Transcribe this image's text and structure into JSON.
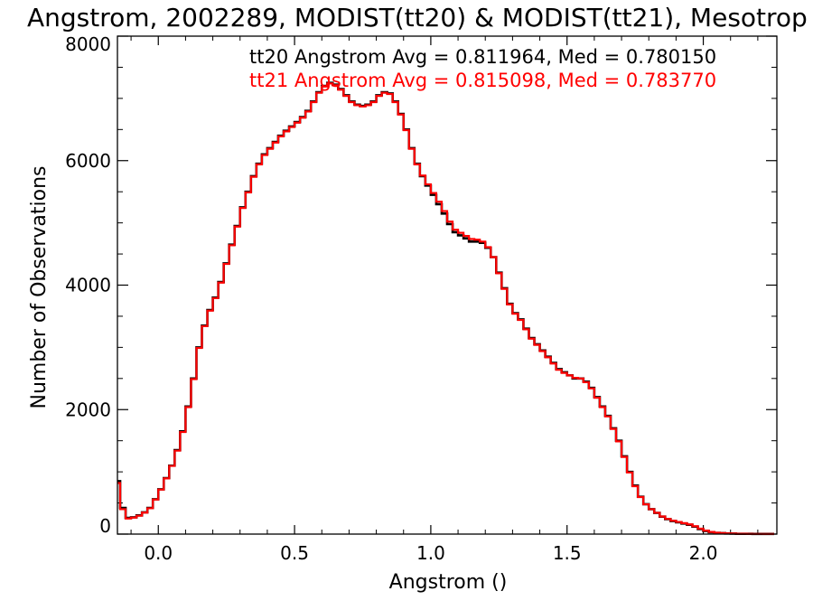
{
  "chart_data": {
    "type": "line",
    "title": "Angstrom, 2002289, MODIST(tt20) & MODIST(tt21), Mesotrop",
    "xlabel": "Angstrom ()",
    "ylabel": "Number of Observations",
    "xlim": [
      -0.15,
      2.27
    ],
    "ylim": [
      0,
      8000
    ],
    "x_ticks": [
      0.0,
      0.5,
      1.0,
      1.5,
      2.0
    ],
    "x_tick_labels": [
      "0.0",
      "0.5",
      "1.0",
      "1.5",
      "2.0"
    ],
    "y_ticks": [
      0,
      2000,
      4000,
      6000,
      8000
    ],
    "y_tick_labels": [
      "0",
      "2000",
      "4000",
      "6000",
      "8000"
    ],
    "grid": false,
    "annotations": [
      {
        "text": "tt20 Angstrom Avg = 0.811964, Med = 0.780150",
        "color": "#000000"
      },
      {
        "text": "tt21 Angstrom Avg = 0.815098, Med = 0.783770",
        "color": "#ff0000"
      }
    ],
    "series": [
      {
        "color": "#000000",
        "style": "histogram-step",
        "x": [
          -0.15,
          -0.13,
          -0.11,
          -0.09,
          -0.07,
          -0.05,
          -0.03,
          -0.01,
          0.01,
          0.03,
          0.05,
          0.07,
          0.09,
          0.11,
          0.13,
          0.15,
          0.17,
          0.19,
          0.21,
          0.23,
          0.25,
          0.27,
          0.29,
          0.31,
          0.33,
          0.35,
          0.37,
          0.39,
          0.41,
          0.43,
          0.45,
          0.47,
          0.49,
          0.51,
          0.53,
          0.55,
          0.57,
          0.59,
          0.61,
          0.63,
          0.65,
          0.67,
          0.69,
          0.71,
          0.73,
          0.75,
          0.77,
          0.79,
          0.81,
          0.83,
          0.85,
          0.87,
          0.89,
          0.91,
          0.93,
          0.95,
          0.97,
          0.99,
          1.01,
          1.03,
          1.05,
          1.07,
          1.09,
          1.11,
          1.13,
          1.15,
          1.17,
          1.19,
          1.21,
          1.23,
          1.25,
          1.27,
          1.29,
          1.31,
          1.33,
          1.35,
          1.37,
          1.39,
          1.41,
          1.43,
          1.45,
          1.47,
          1.49,
          1.51,
          1.53,
          1.55,
          1.57,
          1.59,
          1.61,
          1.63,
          1.65,
          1.67,
          1.69,
          1.71,
          1.73,
          1.75,
          1.77,
          1.79,
          1.81,
          1.83,
          1.85,
          1.87,
          1.89,
          1.91,
          1.93,
          1.95,
          1.97,
          1.99,
          2.01,
          2.03,
          2.05,
          2.07,
          2.09,
          2.11,
          2.13,
          2.15,
          2.17,
          2.19,
          2.21,
          2.23,
          2.25
        ],
        "values": [
          850,
          420,
          260,
          270,
          300,
          350,
          420,
          560,
          720,
          900,
          1100,
          1350,
          1650,
          2050,
          2500,
          3000,
          3350,
          3600,
          3800,
          4050,
          4350,
          4650,
          4950,
          5250,
          5500,
          5750,
          5950,
          6100,
          6200,
          6300,
          6400,
          6480,
          6550,
          6620,
          6700,
          6800,
          6950,
          7100,
          7200,
          7250,
          7220,
          7150,
          7050,
          6950,
          6900,
          6880,
          6900,
          6950,
          7050,
          7100,
          7080,
          6950,
          6750,
          6500,
          6200,
          5950,
          5750,
          5600,
          5450,
          5300,
          5150,
          4980,
          4850,
          4800,
          4750,
          4700,
          4700,
          4680,
          4600,
          4450,
          4200,
          3950,
          3700,
          3550,
          3450,
          3300,
          3150,
          3050,
          2950,
          2850,
          2750,
          2650,
          2600,
          2550,
          2500,
          2500,
          2450,
          2350,
          2200,
          2050,
          1900,
          1700,
          1500,
          1250,
          1000,
          780,
          600,
          480,
          400,
          340,
          280,
          240,
          210,
          190,
          170,
          150,
          120,
          80,
          50,
          30,
          20,
          15,
          10,
          8,
          5,
          5,
          4,
          3,
          3,
          2,
          2
        ]
      },
      {
        "color": "#ff0000",
        "style": "histogram-step",
        "x": [
          -0.15,
          -0.13,
          -0.11,
          -0.09,
          -0.07,
          -0.05,
          -0.03,
          -0.01,
          0.01,
          0.03,
          0.05,
          0.07,
          0.09,
          0.11,
          0.13,
          0.15,
          0.17,
          0.19,
          0.21,
          0.23,
          0.25,
          0.27,
          0.29,
          0.31,
          0.33,
          0.35,
          0.37,
          0.39,
          0.41,
          0.43,
          0.45,
          0.47,
          0.49,
          0.51,
          0.53,
          0.55,
          0.57,
          0.59,
          0.61,
          0.63,
          0.65,
          0.67,
          0.69,
          0.71,
          0.73,
          0.75,
          0.77,
          0.79,
          0.81,
          0.83,
          0.85,
          0.87,
          0.89,
          0.91,
          0.93,
          0.95,
          0.97,
          0.99,
          1.01,
          1.03,
          1.05,
          1.07,
          1.09,
          1.11,
          1.13,
          1.15,
          1.17,
          1.19,
          1.21,
          1.23,
          1.25,
          1.27,
          1.29,
          1.31,
          1.33,
          1.35,
          1.37,
          1.39,
          1.41,
          1.43,
          1.45,
          1.47,
          1.49,
          1.51,
          1.53,
          1.55,
          1.57,
          1.59,
          1.61,
          1.63,
          1.65,
          1.67,
          1.69,
          1.71,
          1.73,
          1.75,
          1.77,
          1.79,
          1.81,
          1.83,
          1.85,
          1.87,
          1.89,
          1.91,
          1.93,
          1.95,
          1.97,
          1.99,
          2.01,
          2.03,
          2.05,
          2.07,
          2.09,
          2.11,
          2.13,
          2.15,
          2.17,
          2.19,
          2.21,
          2.23,
          2.25
        ],
        "values": [
          820,
          400,
          250,
          265,
          295,
          345,
          415,
          555,
          715,
          895,
          1095,
          1340,
          1640,
          2040,
          2490,
          2990,
          3340,
          3590,
          3790,
          4040,
          4340,
          4640,
          4940,
          5240,
          5490,
          5740,
          5940,
          6090,
          6190,
          6290,
          6390,
          6470,
          6540,
          6610,
          6690,
          6790,
          6940,
          7090,
          7190,
          7240,
          7210,
          7140,
          7040,
          6940,
          6890,
          6870,
          6890,
          6940,
          7040,
          7090,
          7070,
          6940,
          6740,
          6490,
          6190,
          5940,
          5760,
          5620,
          5480,
          5340,
          5190,
          5020,
          4890,
          4840,
          4790,
          4740,
          4730,
          4700,
          4610,
          4450,
          4190,
          3940,
          3690,
          3540,
          3440,
          3290,
          3140,
          3040,
          2940,
          2840,
          2740,
          2640,
          2590,
          2550,
          2510,
          2500,
          2440,
          2340,
          2190,
          2040,
          1890,
          1690,
          1490,
          1240,
          990,
          770,
          595,
          478,
          400,
          342,
          283,
          244,
          215,
          195,
          176,
          156,
          127,
          87,
          56,
          34,
          23,
          17,
          12,
          9,
          6,
          5,
          4,
          3,
          3,
          2,
          2
        ]
      }
    ]
  }
}
